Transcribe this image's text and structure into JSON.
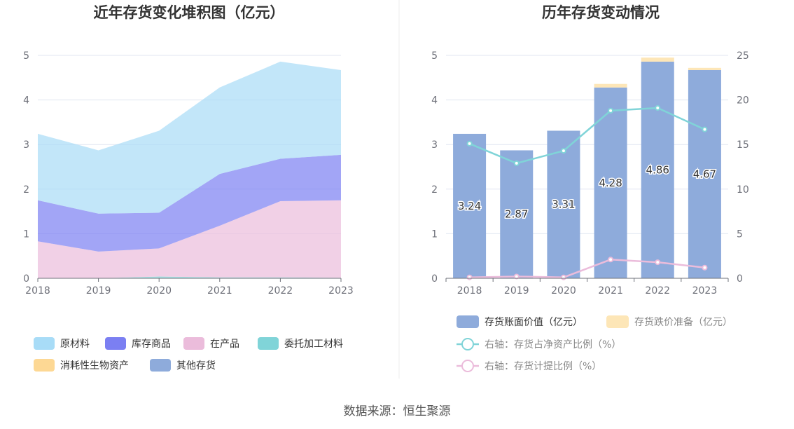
{
  "source": "数据来源：恒生聚源",
  "chart_data": [
    {
      "type": "area",
      "stacked": true,
      "title": "近年存货变化堆积图（亿元）",
      "categories": [
        "2018",
        "2019",
        "2020",
        "2021",
        "2022",
        "2023"
      ],
      "ylim": [
        0,
        5
      ],
      "yticks": [
        0,
        1,
        2,
        3,
        4,
        5
      ],
      "grid": true,
      "legend_position": "bottom",
      "series": [
        {
          "name": "原材料",
          "color": "#a8dcf7",
          "values": [
            1.49,
            1.42,
            1.84,
            1.94,
            2.18,
            1.9
          ]
        },
        {
          "name": "库存商品",
          "color": "#7b7ff2",
          "values": [
            0.92,
            0.85,
            0.8,
            1.16,
            0.95,
            1.02
          ]
        },
        {
          "name": "在产品",
          "color": "#ebbcdb",
          "values": [
            0.83,
            0.6,
            0.63,
            1.16,
            1.71,
            1.74
          ]
        },
        {
          "name": "委托加工材料",
          "color": "#80d4d8",
          "values": [
            0.0,
            0.0,
            0.04,
            0.02,
            0.02,
            0.01
          ]
        },
        {
          "name": "消耗性生物资产",
          "color": "#fdd894",
          "values": [
            0.0,
            0.0,
            0.0,
            0.0,
            0.0,
            0.0
          ]
        },
        {
          "name": "其他存货",
          "color": "#8eabdb",
          "values": [
            0.0,
            0.0,
            0.0,
            0.0,
            0.0,
            0.0
          ]
        }
      ]
    },
    {
      "type": "bar",
      "stacked": true,
      "title": "历年存货变动情况",
      "categories": [
        "2018",
        "2019",
        "2020",
        "2021",
        "2022",
        "2023"
      ],
      "ylim": [
        0,
        5
      ],
      "yticks": [
        0,
        1,
        2,
        3,
        4,
        5
      ],
      "y2lim": [
        0,
        25
      ],
      "y2ticks": [
        0,
        5,
        10,
        15,
        20,
        25
      ],
      "grid": true,
      "legend_position": "bottom",
      "bar_series": [
        {
          "name": "存货账面价值（亿元）",
          "color": "#8eabdb",
          "values": [
            3.24,
            2.87,
            3.31,
            4.28,
            4.86,
            4.67
          ],
          "labels": [
            "3.24",
            "2.87",
            "3.31",
            "4.28",
            "4.86",
            "4.67"
          ]
        },
        {
          "name": "存货跌价准备（亿元）",
          "color": "#fde6b7",
          "values": [
            0.0,
            0.0,
            0.0,
            0.08,
            0.09,
            0.05
          ]
        }
      ],
      "line_series": [
        {
          "name": "右轴：存货占净资产比例（%）",
          "color": "#80d4d8",
          "axis": "right",
          "values": [
            15.1,
            12.9,
            14.3,
            18.8,
            19.1,
            16.7
          ]
        },
        {
          "name": "右轴：存货计提比例（%）",
          "color": "#ebbcdb",
          "axis": "right",
          "values": [
            0.1,
            0.2,
            0.1,
            2.1,
            1.8,
            1.2
          ]
        }
      ]
    }
  ]
}
